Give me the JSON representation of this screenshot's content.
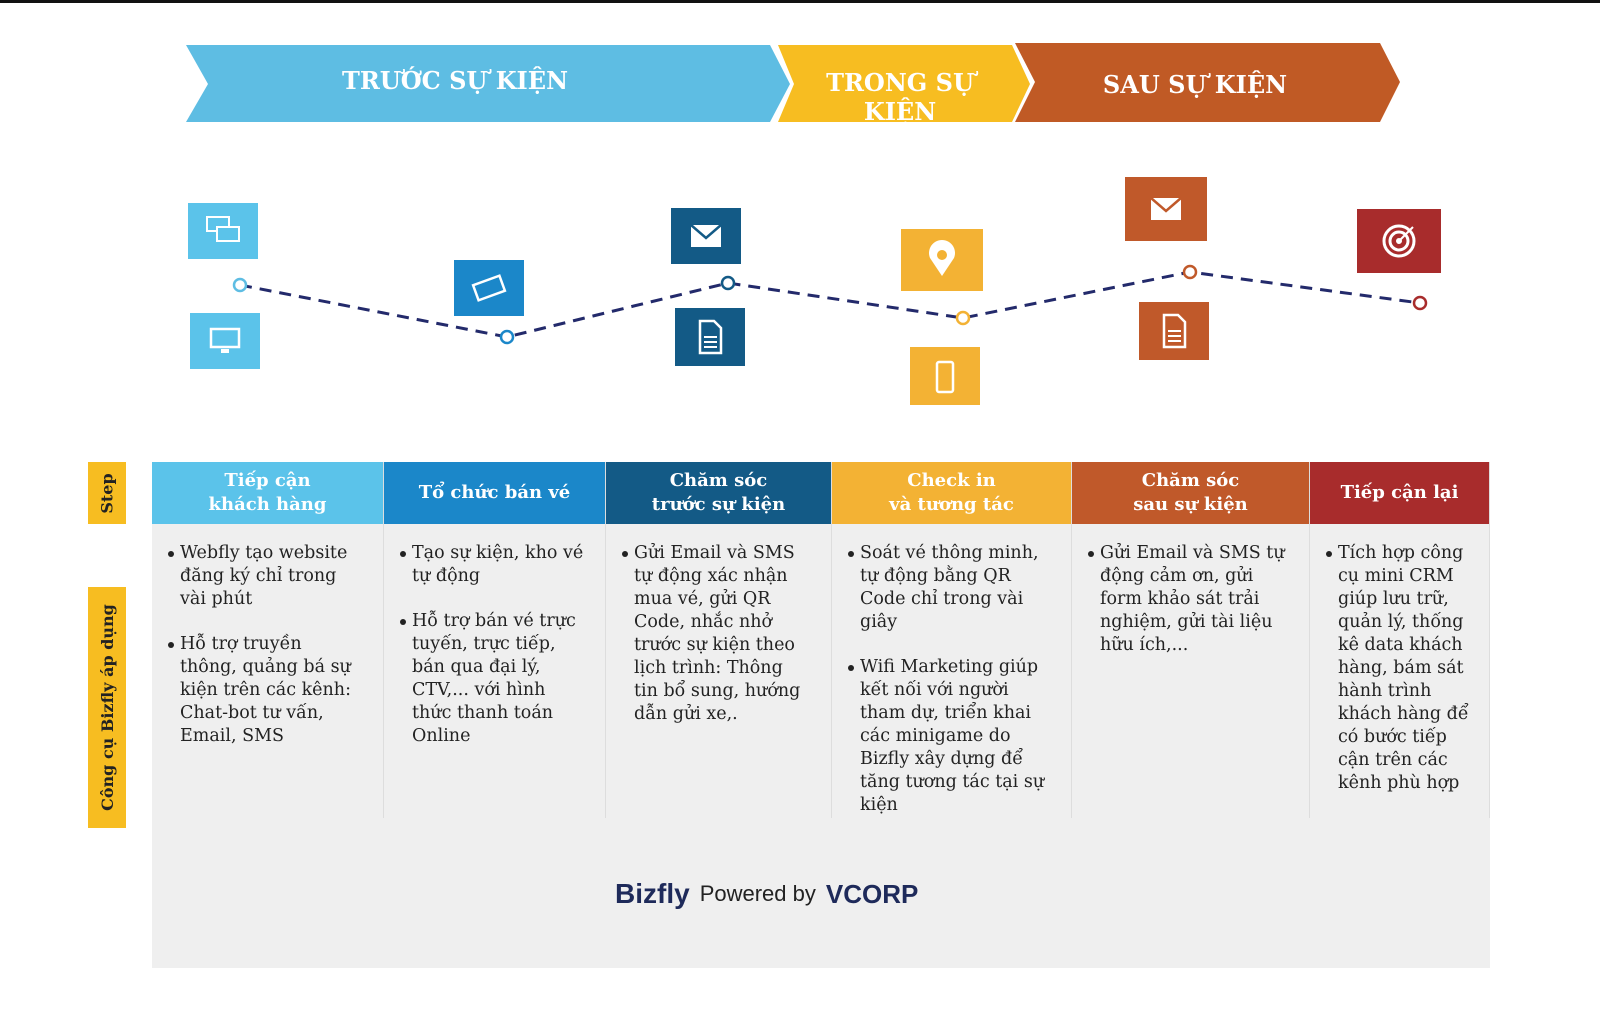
{
  "phases": [
    {
      "label": "TRƯỚC SỰ KIỆN",
      "color": "#5ebde3"
    },
    {
      "label": "TRONG SỰ KIỆN",
      "color": "#f7bd21"
    },
    {
      "label": "SAU SỰ KIỆN",
      "color": "#c05a25"
    }
  ],
  "timeline_icons": [
    "chat-icon",
    "computer-icon",
    "ticket-icon",
    "email-icon",
    "document-icon",
    "location-pin-icon",
    "smartphone-icon",
    "email-icon",
    "document-icon",
    "target-icon"
  ],
  "side_labels": {
    "step": "Step",
    "tools": "Công cụ Bizfly áp dụng"
  },
  "steps": [
    {
      "title": "Tiếp cận\nkhách hàng",
      "color": "#5bc3ea",
      "items": [
        "Webfly tạo website đăng ký chỉ trong vài phút",
        "Hỗ trợ truyền thông, quảng bá sự kiện trên các kênh: Chat-bot tư vấn, Email, SMS"
      ]
    },
    {
      "title": "Tổ chức bán vé",
      "color": "#1b87c9",
      "items": [
        "Tạo sự kiện, kho vé tự động",
        "Hỗ trợ bán vé trực tuyến, trực tiếp, bán qua đại lý, CTV,... với hình thức thanh toán Online"
      ]
    },
    {
      "title": "Chăm sóc\ntrước sự kiện",
      "color": "#135a86",
      "items": [
        "Gửi Email và SMS tự động xác nhận mua vé, gửi QR Code, nhắc nhở trước sự kiện theo lịch trình: Thông tin bổ sung, hướng dẫn gửi xe,."
      ]
    },
    {
      "title": "Check in\nvà tương tác",
      "color": "#f3b234",
      "items": [
        "Soát vé thông minh, tự động bằng QR Code chỉ trong vài giây",
        "Wifi Marketing giúp kết nối với người tham dự, triển khai các minigame do Bizfly xây dựng để tăng tương tác tại sự kiện"
      ]
    },
    {
      "title": "Chăm sóc\nsau sự kiện",
      "color": "#c0592a",
      "items": [
        "Gửi Email và SMS tự động cảm ơn, gửi form khảo sát trải nghiệm, gửi tài liệu hữu ích,..."
      ]
    },
    {
      "title": "Tiếp cận lại",
      "color": "#a82c2c",
      "items": [
        "Tích hợp công cụ mini CRM giúp lưu trữ, quản lý, thống kê data khách hàng, bám sát hành trình khách hàng để có bước tiếp cận trên các kênh phù hợp"
      ]
    }
  ],
  "footer": {
    "brand": "Bizfly",
    "powered": "Powered by",
    "partner_v": "V",
    "partner": "CORP"
  }
}
